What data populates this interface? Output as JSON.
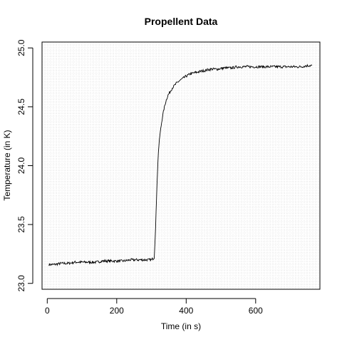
{
  "chart_data": {
    "type": "line",
    "title": "Propellent Data",
    "xlabel": "Time (in s)",
    "ylabel": "Temperature (in K)",
    "xlim": [
      -15,
      785
    ],
    "ylim": [
      22.95,
      25.05
    ],
    "x_ticks": [
      0,
      200,
      400,
      600
    ],
    "x_tick_labels": [
      "0",
      "200",
      "400",
      "600"
    ],
    "y_ticks": [
      23.0,
      23.5,
      24.0,
      24.5,
      25.0
    ],
    "y_tick_labels": [
      "23.0",
      "23.5",
      "24.0",
      "24.5",
      "25.0"
    ],
    "grid": true,
    "series": [
      {
        "color": "#000000",
        "x": [
          5,
          20,
          40,
          60,
          80,
          100,
          120,
          140,
          160,
          180,
          200,
          220,
          240,
          260,
          280,
          300,
          308,
          312,
          316,
          320,
          324,
          328,
          332,
          336,
          340,
          344,
          348,
          352,
          356,
          360,
          366,
          372,
          380,
          390,
          400,
          412,
          426,
          440,
          456,
          472,
          490,
          510,
          530,
          550,
          570,
          590,
          610,
          630,
          650,
          670,
          690,
          710,
          730,
          750,
          762
        ],
        "y": [
          23.16,
          23.16,
          23.17,
          23.17,
          23.18,
          23.18,
          23.18,
          23.18,
          23.19,
          23.19,
          23.19,
          23.19,
          23.2,
          23.2,
          23.2,
          23.2,
          23.22,
          23.48,
          23.85,
          24.12,
          24.25,
          24.34,
          24.42,
          24.48,
          24.53,
          24.57,
          24.6,
          24.62,
          24.64,
          24.66,
          24.68,
          24.7,
          24.72,
          24.74,
          24.76,
          24.78,
          24.79,
          24.8,
          24.81,
          24.82,
          24.82,
          24.83,
          24.83,
          24.84,
          24.84,
          24.84,
          24.84,
          24.84,
          24.84,
          24.84,
          24.84,
          24.84,
          24.84,
          24.85,
          24.85
        ]
      }
    ]
  }
}
